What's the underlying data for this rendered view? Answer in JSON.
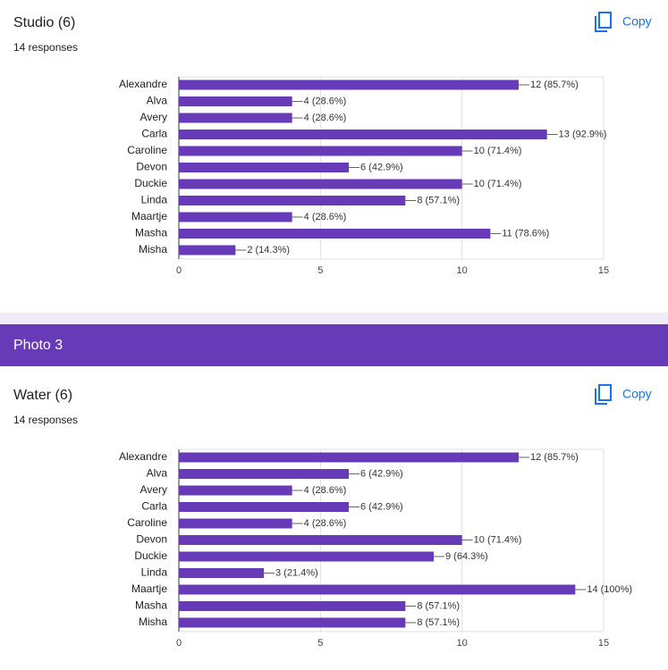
{
  "cards": [
    {
      "title": "Studio (6)",
      "responses": "14 responses",
      "copy": "Copy"
    },
    {
      "title": "Water (6)",
      "responses": "14 responses",
      "copy": "Copy"
    }
  ],
  "banner": "Photo 3",
  "chart_data": [
    {
      "type": "bar",
      "color": "#673ab7",
      "grid": true,
      "categories": [
        "Alexandre",
        "Alva",
        "Avery",
        "Carla",
        "Caroline",
        "Devon",
        "Duckie",
        "Linda",
        "Maartje",
        "Masha",
        "Misha"
      ],
      "values": [
        12,
        4,
        4,
        13,
        10,
        6,
        10,
        8,
        4,
        11,
        2
      ],
      "value_labels": [
        "12 (85.7%)",
        "4 (28.6%)",
        "4 (28.6%)",
        "13 (92.9%)",
        "10 (71.4%)",
        "6 (42.9%)",
        "10 (71.4%)",
        "8 (57.1%)",
        "4 (28.6%)",
        "11 (78.6%)",
        "2 (14.3%)"
      ],
      "xlim": [
        0,
        15
      ],
      "xticks": [
        0,
        5,
        10,
        15
      ]
    },
    {
      "type": "bar",
      "color": "#673ab7",
      "grid": true,
      "categories": [
        "Alexandre",
        "Alva",
        "Avery",
        "Carla",
        "Caroline",
        "Devon",
        "Duckie",
        "Linda",
        "Maartje",
        "Masha",
        "Misha"
      ],
      "values": [
        12,
        6,
        4,
        6,
        4,
        10,
        9,
        3,
        14,
        8,
        8
      ],
      "value_labels": [
        "12 (85.7%)",
        "6 (42.9%)",
        "4 (28.6%)",
        "6 (42.9%)",
        "4 (28.6%)",
        "10 (71.4%)",
        "9 (64.3%)",
        "3 (21.4%)",
        "14 (100%)",
        "8 (57.1%)",
        "8 (57.1%)"
      ],
      "xlim": [
        0,
        15
      ],
      "xticks": [
        0,
        5,
        10,
        15
      ]
    }
  ]
}
